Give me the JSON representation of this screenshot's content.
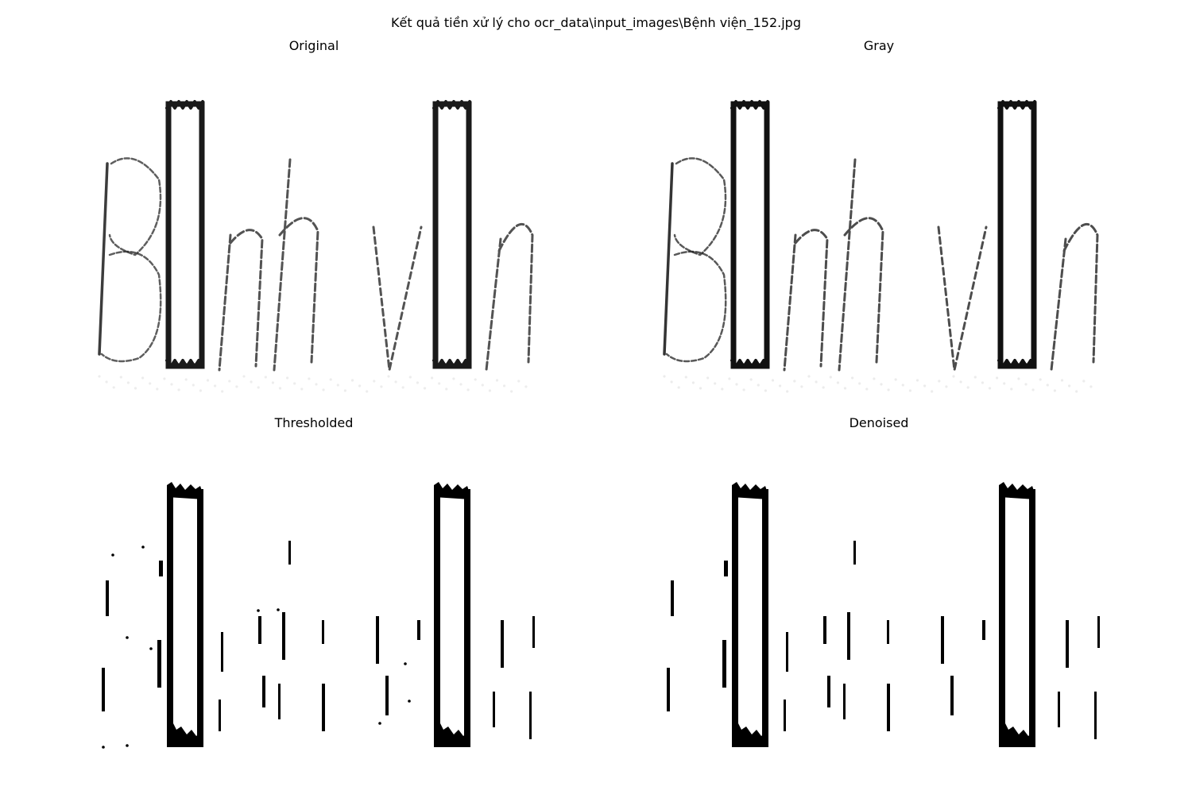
{
  "figure": {
    "title": "Kết quả tiền xử lý cho ocr_data\\input_images\\Bệnh viện_152.jpg"
  },
  "panels": [
    {
      "key": "original",
      "title": "Original",
      "style": "soft",
      "ink": "#1a1a1a"
    },
    {
      "key": "gray",
      "title": "Gray",
      "style": "soft",
      "ink": "#111111"
    },
    {
      "key": "thresholded",
      "title": "Thresholded",
      "style": "binary",
      "ink": "#000000"
    },
    {
      "key": "denoised",
      "title": "Denoised",
      "style": "binary",
      "ink": "#000000"
    }
  ],
  "image_content": {
    "word_shapes": "B▯nh v▯n",
    "description_of_pixels": "scanned handwritten word with two solid rectangular blocks"
  }
}
